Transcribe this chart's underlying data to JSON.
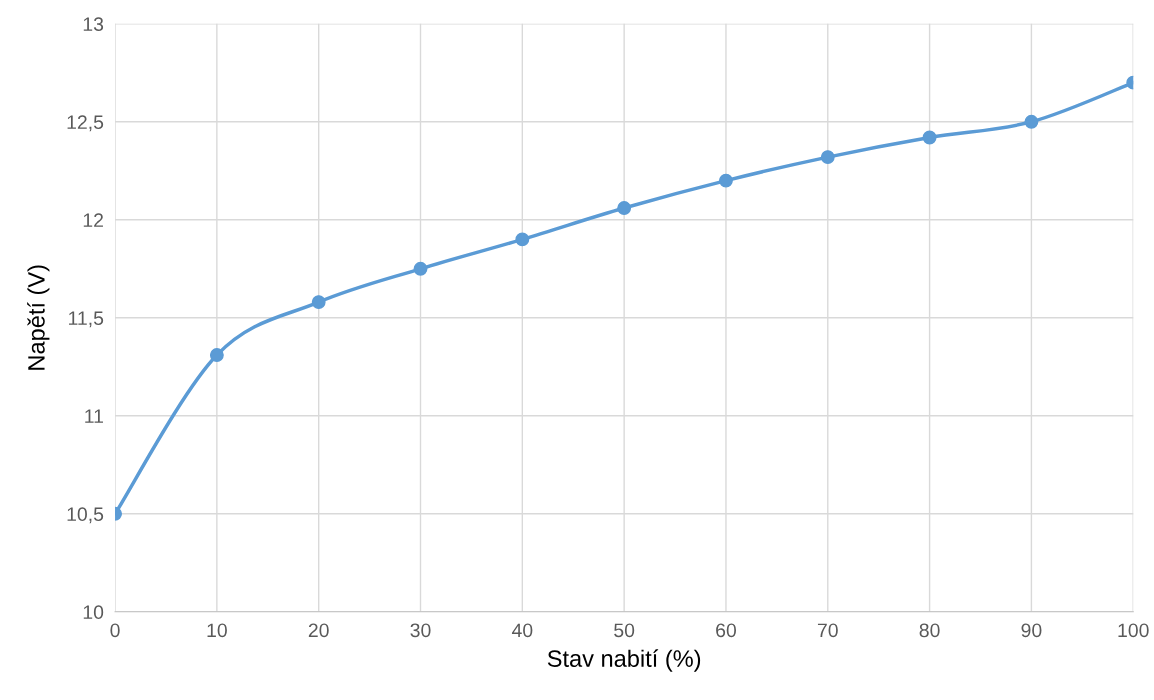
{
  "chart_data": {
    "type": "line",
    "xlabel": "Stav nabití (%)",
    "ylabel": "Napětí (V)",
    "x": [
      0,
      10,
      20,
      30,
      40,
      50,
      60,
      70,
      80,
      90,
      100
    ],
    "series": [
      {
        "color": "#5b9bd5",
        "values": [
          10.5,
          11.31,
          11.58,
          11.75,
          11.9,
          12.06,
          12.2,
          12.32,
          12.42,
          12.5,
          12.7
        ]
      }
    ],
    "xlim": [
      0,
      100
    ],
    "ylim": [
      10,
      13
    ],
    "xticks": [
      0,
      10,
      20,
      30,
      40,
      50,
      60,
      70,
      80,
      90,
      100
    ],
    "yticks": [
      10,
      {
        "value": 10.5,
        "label": "10,5"
      },
      11,
      {
        "value": 11.5,
        "label": "11,5"
      },
      12,
      {
        "value": 12.5,
        "label": "12,5"
      },
      13
    ],
    "grid": true,
    "marker": "circle",
    "line_style": "solid"
  }
}
